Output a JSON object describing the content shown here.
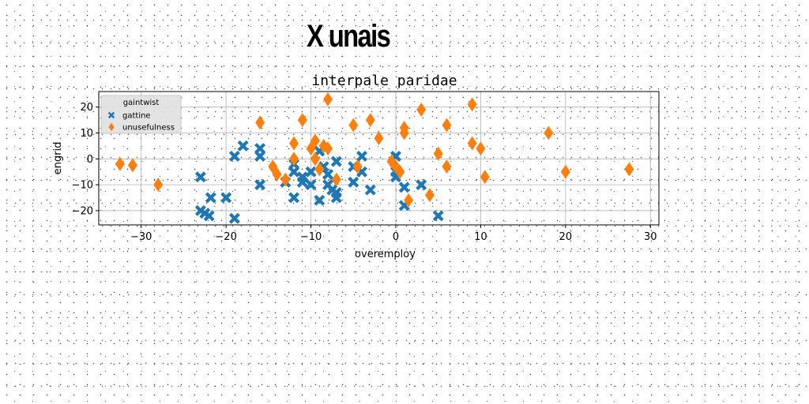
{
  "page": {
    "title": "X unais"
  },
  "chart_data": {
    "type": "scatter",
    "title": "interpale paridae",
    "xlabel": "overemploy",
    "ylabel": "engrid",
    "xlim": [
      -35,
      31
    ],
    "ylim": [
      -25.5,
      26
    ],
    "xticks": [
      -30,
      -20,
      -10,
      0,
      10,
      20,
      30
    ],
    "yticks": [
      -20,
      -10,
      0,
      10,
      20
    ],
    "grid": true,
    "legend": {
      "title": "gaintwist",
      "placement": "top-left"
    },
    "series": [
      {
        "name": "gattine",
        "marker": "x",
        "color": "#1f77b4",
        "points": [
          [
            -23,
            -7
          ],
          [
            -23,
            -20
          ],
          [
            -22.5,
            -21
          ],
          [
            -22,
            -22
          ],
          [
            -21.8,
            -15
          ],
          [
            -20,
            -15
          ],
          [
            -19,
            -23
          ],
          [
            -19,
            1
          ],
          [
            -18,
            5
          ],
          [
            -16,
            4
          ],
          [
            -16,
            1
          ],
          [
            -16,
            -10
          ],
          [
            -13,
            -9
          ],
          [
            -12,
            -5
          ],
          [
            -12,
            -2
          ],
          [
            -12,
            -15
          ],
          [
            -11,
            -7
          ],
          [
            -11,
            -9
          ],
          [
            -10,
            -10
          ],
          [
            -10,
            -5
          ],
          [
            -9,
            3
          ],
          [
            -9,
            -16
          ],
          [
            -8.5,
            -3
          ],
          [
            -8,
            -6
          ],
          [
            -8,
            -10
          ],
          [
            -7.5,
            -12
          ],
          [
            -7,
            -1
          ],
          [
            -7,
            -13
          ],
          [
            -7,
            -15
          ],
          [
            -5,
            -3
          ],
          [
            -5,
            -9
          ],
          [
            -4,
            1
          ],
          [
            -4,
            -5
          ],
          [
            -3,
            -12
          ],
          [
            0,
            -5
          ],
          [
            0,
            1
          ],
          [
            0,
            -7
          ],
          [
            1,
            -11
          ],
          [
            1,
            -18
          ],
          [
            3,
            -10
          ],
          [
            5,
            -22
          ]
        ]
      },
      {
        "name": "unusefulness",
        "marker": "d",
        "color": "#ff7f0e",
        "points": [
          [
            -32.5,
            -2
          ],
          [
            -31,
            -2.5
          ],
          [
            -28,
            -10
          ],
          [
            -16,
            14
          ],
          [
            -14.5,
            -3
          ],
          [
            -14,
            -6
          ],
          [
            -13,
            -8
          ],
          [
            -12,
            6
          ],
          [
            -12,
            0
          ],
          [
            -11,
            15
          ],
          [
            -10,
            4
          ],
          [
            -9.5,
            7
          ],
          [
            -9.5,
            0
          ],
          [
            -9,
            -4
          ],
          [
            -8.5,
            5
          ],
          [
            -8,
            23
          ],
          [
            -8,
            4
          ],
          [
            -7,
            -8
          ],
          [
            -5,
            13
          ],
          [
            -4.5,
            -3
          ],
          [
            -3,
            15
          ],
          [
            -2,
            8
          ],
          [
            -0.5,
            -1
          ],
          [
            0,
            -3
          ],
          [
            0.5,
            -5
          ],
          [
            1,
            12
          ],
          [
            1,
            10
          ],
          [
            1.5,
            -16
          ],
          [
            3,
            19
          ],
          [
            4,
            -14
          ],
          [
            5,
            2
          ],
          [
            6,
            13
          ],
          [
            6,
            -3
          ],
          [
            9,
            21
          ],
          [
            9,
            6
          ],
          [
            10,
            4
          ],
          [
            10.5,
            -7
          ],
          [
            18,
            10
          ],
          [
            20,
            -5
          ],
          [
            27.5,
            -4
          ]
        ]
      }
    ]
  }
}
